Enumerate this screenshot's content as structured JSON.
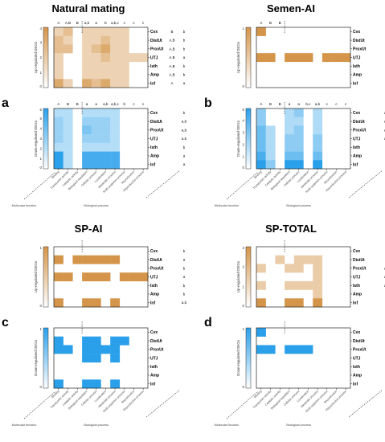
{
  "columns": [
    "Binding",
    "Transporter activity",
    "Catalytic activity",
    "Biological regulation",
    "Cellular process",
    "Localization",
    "Metabolic process",
    "Multi-organism process",
    "Reproduction",
    "Reproductive process"
  ],
  "rows": [
    "Cvx",
    "DistUt",
    "ProxUt",
    "UTJ",
    "Isth",
    "Amp",
    "Inf"
  ],
  "group_labels": {
    "molecular": "Molecular function",
    "biological": "Biological process"
  },
  "axis_labels": {
    "up": "Up-regulated DEGs",
    "down": "Down-regulated DEGs"
  },
  "colors": {
    "up": "#d4954a",
    "down": "#2aa0ea"
  },
  "panels": [
    {
      "label": "a",
      "title": "Natural mating",
      "up": {
        "max": 4,
        "top_letters": [
          "A",
          "A,B",
          "B",
          "a,b",
          "a",
          "b",
          "a,b,c",
          "c",
          "c",
          "c"
        ],
        "row_letters_upper": [
          "B",
          "A,B",
          "A,B",
          "A,B",
          "A,B",
          "A,B",
          "A"
        ],
        "row_letters_lower": [
          "b",
          "b",
          "b",
          "a",
          "b",
          "b",
          "a"
        ],
        "values": [
          [
            1,
            2,
            0,
            1,
            1,
            1,
            1,
            1,
            0,
            0
          ],
          [
            2,
            1,
            0,
            1,
            1,
            2,
            1,
            1,
            0,
            0
          ],
          [
            2,
            2,
            0,
            1,
            2,
            3,
            1,
            1,
            0,
            0
          ],
          [
            1,
            0,
            0,
            1,
            1,
            2,
            1,
            1,
            1,
            1
          ],
          [
            1,
            0,
            0,
            1,
            1,
            1,
            1,
            1,
            0,
            0
          ],
          [
            1,
            0,
            0,
            1,
            1,
            1,
            1,
            1,
            0,
            0
          ],
          [
            3,
            1,
            0,
            3,
            2,
            3,
            1,
            1,
            0,
            0
          ]
        ]
      },
      "down": {
        "max": 6,
        "top_letters": [
          "A",
          "B",
          "B",
          "a",
          "a",
          "a,b",
          "a,b,c",
          "b",
          "c",
          "c"
        ],
        "row_letters": [
          "b",
          "a,b",
          "a,b",
          "a,b",
          "b",
          "a",
          "a"
        ],
        "values": [
          [
            1,
            1,
            0,
            1,
            1,
            1,
            1,
            0,
            0,
            0
          ],
          [
            2,
            1,
            0,
            2,
            2,
            2,
            1,
            0,
            0,
            0
          ],
          [
            2,
            1,
            0,
            3,
            2,
            2,
            1,
            0,
            0,
            0
          ],
          [
            2,
            1,
            0,
            2,
            2,
            2,
            1,
            0,
            0,
            0
          ],
          [
            1,
            1,
            0,
            1,
            1,
            1,
            1,
            0,
            0,
            0
          ],
          [
            6,
            1,
            0,
            5,
            5,
            5,
            5,
            0,
            0,
            0
          ],
          [
            6,
            1,
            0,
            5,
            5,
            5,
            5,
            0,
            0,
            0
          ]
        ]
      }
    },
    {
      "label": "b",
      "title": "Semen-AI",
      "up": {
        "max": 1,
        "top_letters": [
          "A",
          "B",
          "B",
          "",
          "",
          "",
          "",
          "",
          "",
          ""
        ],
        "row_letters": [
          "b",
          "b",
          "b",
          "a",
          "b",
          "b",
          "b"
        ],
        "values": [
          [
            1,
            0,
            0,
            0,
            0,
            0,
            0,
            0,
            0,
            0
          ],
          [
            0,
            0,
            0,
            0,
            0,
            0,
            0,
            0,
            0,
            0
          ],
          [
            0,
            0,
            0,
            0,
            0,
            0,
            0,
            0,
            0,
            0
          ],
          [
            1,
            1,
            0,
            1,
            1,
            1,
            0,
            1,
            1,
            1
          ],
          [
            0,
            0,
            0,
            0,
            0,
            0,
            0,
            0,
            0,
            0
          ],
          [
            0,
            0,
            0,
            0,
            0,
            0,
            0,
            0,
            0,
            0
          ],
          [
            0,
            0,
            0,
            0,
            0,
            0,
            0,
            0,
            0,
            0
          ]
        ]
      },
      "down": {
        "max": 5,
        "top_letters": [
          "A",
          "B",
          "B",
          "a",
          "a",
          "b,c",
          "a,b",
          "c",
          "c",
          "c"
        ],
        "row_letters": [
          "a,b",
          "a,b",
          "a,b",
          "a,b",
          "a",
          "a",
          "a"
        ],
        "values": [
          [
            2,
            0,
            0,
            1,
            2,
            0,
            1,
            0,
            0,
            0
          ],
          [
            2,
            0,
            0,
            1,
            1,
            0,
            1,
            0,
            0,
            0
          ],
          [
            3,
            1,
            0,
            1,
            2,
            0,
            1,
            0,
            0,
            0
          ],
          [
            3,
            1,
            0,
            2,
            2,
            0,
            2,
            0,
            0,
            0
          ],
          [
            3,
            1,
            0,
            2,
            2,
            0,
            2,
            0,
            0,
            0
          ],
          [
            4,
            1,
            0,
            3,
            3,
            0,
            3,
            0,
            0,
            0
          ],
          [
            5,
            2,
            0,
            5,
            5,
            0,
            5,
            0,
            0,
            0
          ]
        ]
      }
    },
    {
      "label": "c",
      "title": "SP-AI",
      "up": {
        "max": 1,
        "top_letters": [
          "",
          "",
          "",
          "",
          "",
          "",
          "",
          "",
          "",
          ""
        ],
        "row_letters": [
          "b",
          "a",
          "b",
          "a",
          "b",
          "b",
          "a,b"
        ],
        "values": [
          [
            0,
            0,
            0,
            0,
            0,
            0,
            0,
            0,
            0,
            0
          ],
          [
            1,
            0,
            1,
            1,
            1,
            1,
            1,
            0,
            0,
            0
          ],
          [
            0,
            0,
            0,
            0,
            0,
            0,
            0,
            0,
            0,
            0
          ],
          [
            1,
            1,
            0,
            1,
            1,
            1,
            0,
            1,
            1,
            1
          ],
          [
            0,
            0,
            0,
            0,
            0,
            0,
            0,
            0,
            0,
            0
          ],
          [
            0,
            0,
            0,
            0,
            0,
            0,
            0,
            0,
            0,
            0
          ],
          [
            1,
            0,
            0,
            1,
            1,
            0,
            1,
            0,
            0,
            0
          ]
        ]
      },
      "down": {
        "max": 1,
        "top_letters": [
          "",
          "",
          "",
          "",
          "",
          "",
          "",
          "",
          "",
          ""
        ],
        "row_letters": [
          "",
          "",
          "",
          "",
          "",
          "",
          ""
        ],
        "values": [
          [
            0,
            0,
            0,
            0,
            0,
            0,
            0,
            0,
            0,
            0
          ],
          [
            1,
            0,
            0,
            1,
            1,
            0,
            1,
            1,
            0,
            0
          ],
          [
            1,
            1,
            0,
            1,
            1,
            1,
            1,
            0,
            0,
            0
          ],
          [
            0,
            0,
            0,
            1,
            1,
            0,
            1,
            0,
            0,
            0
          ],
          [
            0,
            0,
            0,
            0,
            0,
            0,
            0,
            0,
            0,
            0
          ],
          [
            0,
            0,
            0,
            0,
            0,
            0,
            0,
            0,
            0,
            0
          ],
          [
            1,
            0,
            0,
            1,
            1,
            0,
            1,
            0,
            0,
            0
          ]
        ]
      }
    },
    {
      "label": "d",
      "title": "SP-TOTAL",
      "up": {
        "max": 3,
        "top_letters": [
          "",
          "",
          "",
          "",
          "",
          "",
          "",
          "",
          "",
          ""
        ],
        "row_letters": [
          "b",
          "b",
          "a,b",
          "a,b",
          "a,b",
          "b",
          "a"
        ],
        "values": [
          [
            0,
            0,
            0,
            0,
            0,
            0,
            0,
            0,
            0,
            0
          ],
          [
            0,
            0,
            1,
            0,
            1,
            1,
            1,
            0,
            0,
            0
          ],
          [
            1,
            0,
            0,
            1,
            1,
            0,
            1,
            0,
            0,
            0
          ],
          [
            0,
            0,
            0,
            0,
            0,
            0,
            1,
            0,
            0,
            0
          ],
          [
            1,
            0,
            0,
            1,
            1,
            1,
            1,
            0,
            0,
            0
          ],
          [
            0,
            0,
            0,
            0,
            0,
            0,
            1,
            0,
            0,
            0
          ],
          [
            3,
            0,
            0,
            3,
            3,
            0,
            3,
            0,
            0,
            0
          ]
        ]
      },
      "down": {
        "max": 1,
        "top_letters": [
          "",
          "",
          "",
          "",
          "",
          "",
          "",
          "",
          "",
          ""
        ],
        "row_letters": [
          "b",
          "b",
          "a",
          "b",
          "b",
          "b",
          "b"
        ],
        "values": [
          [
            1,
            0,
            0,
            0,
            0,
            0,
            0,
            0,
            0,
            0
          ],
          [
            0,
            0,
            0,
            0,
            0,
            0,
            0,
            0,
            0,
            0
          ],
          [
            1,
            1,
            0,
            1,
            1,
            1,
            0,
            0,
            0,
            0
          ],
          [
            0,
            0,
            0,
            0,
            0,
            0,
            0,
            0,
            0,
            0
          ],
          [
            0,
            0,
            0,
            0,
            0,
            0,
            0,
            0,
            0,
            0
          ],
          [
            0,
            0,
            0,
            0,
            0,
            0,
            0,
            0,
            0,
            0
          ],
          [
            0,
            0,
            0,
            0,
            0,
            0,
            0,
            0,
            0,
            0
          ]
        ]
      }
    }
  ]
}
